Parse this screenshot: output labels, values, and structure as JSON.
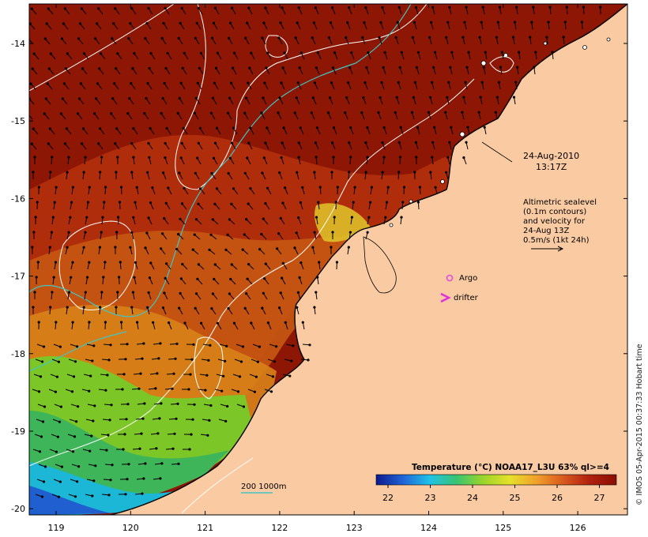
{
  "map": {
    "date_line": "24-Aug-2010",
    "time_line": "13:17Z",
    "legend_lines": [
      "Altimetric sealevel",
      "(0.1m contours)",
      "and velocity for",
      "24-Aug 13Z",
      "0.5m/s (1kt 24h)"
    ],
    "argo_label": "Argo",
    "drifter_label": "drifter",
    "depth_label": "200  1000m",
    "credit": "© IMOS 05-Apr-2015 00:37:33 Hobart time",
    "colorbar": {
      "title": "Temperature (°C) NOAA17_L3U 63% ql>=4",
      "ticks": [
        "22",
        "23",
        "24",
        "25",
        "26",
        "27"
      ],
      "colors": [
        "#0b1a8c",
        "#1f63d6",
        "#1fc2e8",
        "#38c472",
        "#9ad52a",
        "#e5e12b",
        "#f0a12a",
        "#d9591e",
        "#b0200f",
        "#8b0e02"
      ]
    },
    "lon_ticks": [
      "119",
      "120",
      "121",
      "122",
      "123",
      "124",
      "125",
      "126"
    ],
    "lat_ticks": [
      "-14",
      "-15",
      "-16",
      "-17",
      "-18",
      "-19",
      "-20"
    ],
    "colors": {
      "land": "#facba3",
      "contour": "#ffffff",
      "isobath": "#3fc6c4",
      "argo": "#e14be0",
      "drifter": "#e12de0"
    }
  }
}
